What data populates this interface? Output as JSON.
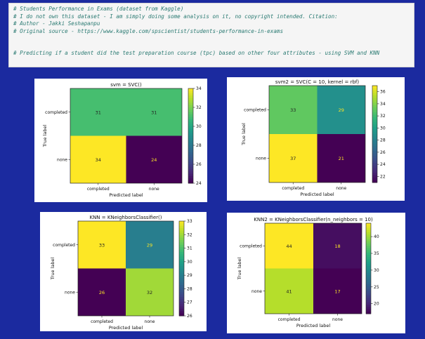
{
  "notebook_cell": {
    "lines": [
      "# Students Performance in Exams (dataset from Kaggle)",
      "# I do not own this dataset - I am simply doing some analysis on it, no copyright intended. Citation:",
      "# Author - Jakki Seshapanpu",
      "# Original source - https://www.kaggle.com/spscientist/students-performance-in-exams",
      "",
      "",
      "# Predicting if a student did the test preparation course (tpc) based on other four attributes - using SVM and KNN"
    ]
  },
  "chart_data": [
    {
      "type": "heatmap",
      "title": "svm = SVC()",
      "xlabel": "Predicted label",
      "ylabel": "True label",
      "categories": [
        "completed",
        "none"
      ],
      "matrix": [
        [
          31,
          31
        ],
        [
          34,
          24
        ]
      ],
      "colorbar_range": [
        24,
        34
      ],
      "colorbar_ticks": [
        24,
        26,
        28,
        30,
        32,
        34
      ]
    },
    {
      "type": "heatmap",
      "title": "svm2 = SVC(C = 10, kernel = rbf)",
      "xlabel": "Predicted label",
      "ylabel": "True label",
      "categories": [
        "completed",
        "none"
      ],
      "matrix": [
        [
          33,
          29
        ],
        [
          37,
          21
        ]
      ],
      "colorbar_range": [
        21,
        37
      ],
      "colorbar_ticks": [
        22,
        24,
        26,
        28,
        30,
        32,
        34,
        36
      ]
    },
    {
      "type": "heatmap",
      "title": "KNN = KNeighborsClassifier()",
      "xlabel": "Predicted label",
      "ylabel": "True label",
      "categories": [
        "completed",
        "none"
      ],
      "matrix": [
        [
          33,
          29
        ],
        [
          26,
          32
        ]
      ],
      "colorbar_range": [
        26,
        33
      ],
      "colorbar_ticks": [
        26,
        27,
        28,
        29,
        30,
        31,
        32,
        33
      ]
    },
    {
      "type": "heatmap",
      "title": "KNN2 = KNeighborsClassifier(n_neighbors = 10)",
      "xlabel": "Predicted label",
      "ylabel": "True label",
      "categories": [
        "completed",
        "none"
      ],
      "matrix": [
        [
          44,
          18
        ],
        [
          41,
          17
        ]
      ],
      "colorbar_range": [
        17,
        44
      ],
      "colorbar_ticks": [
        20,
        25,
        30,
        35,
        40
      ]
    }
  ]
}
